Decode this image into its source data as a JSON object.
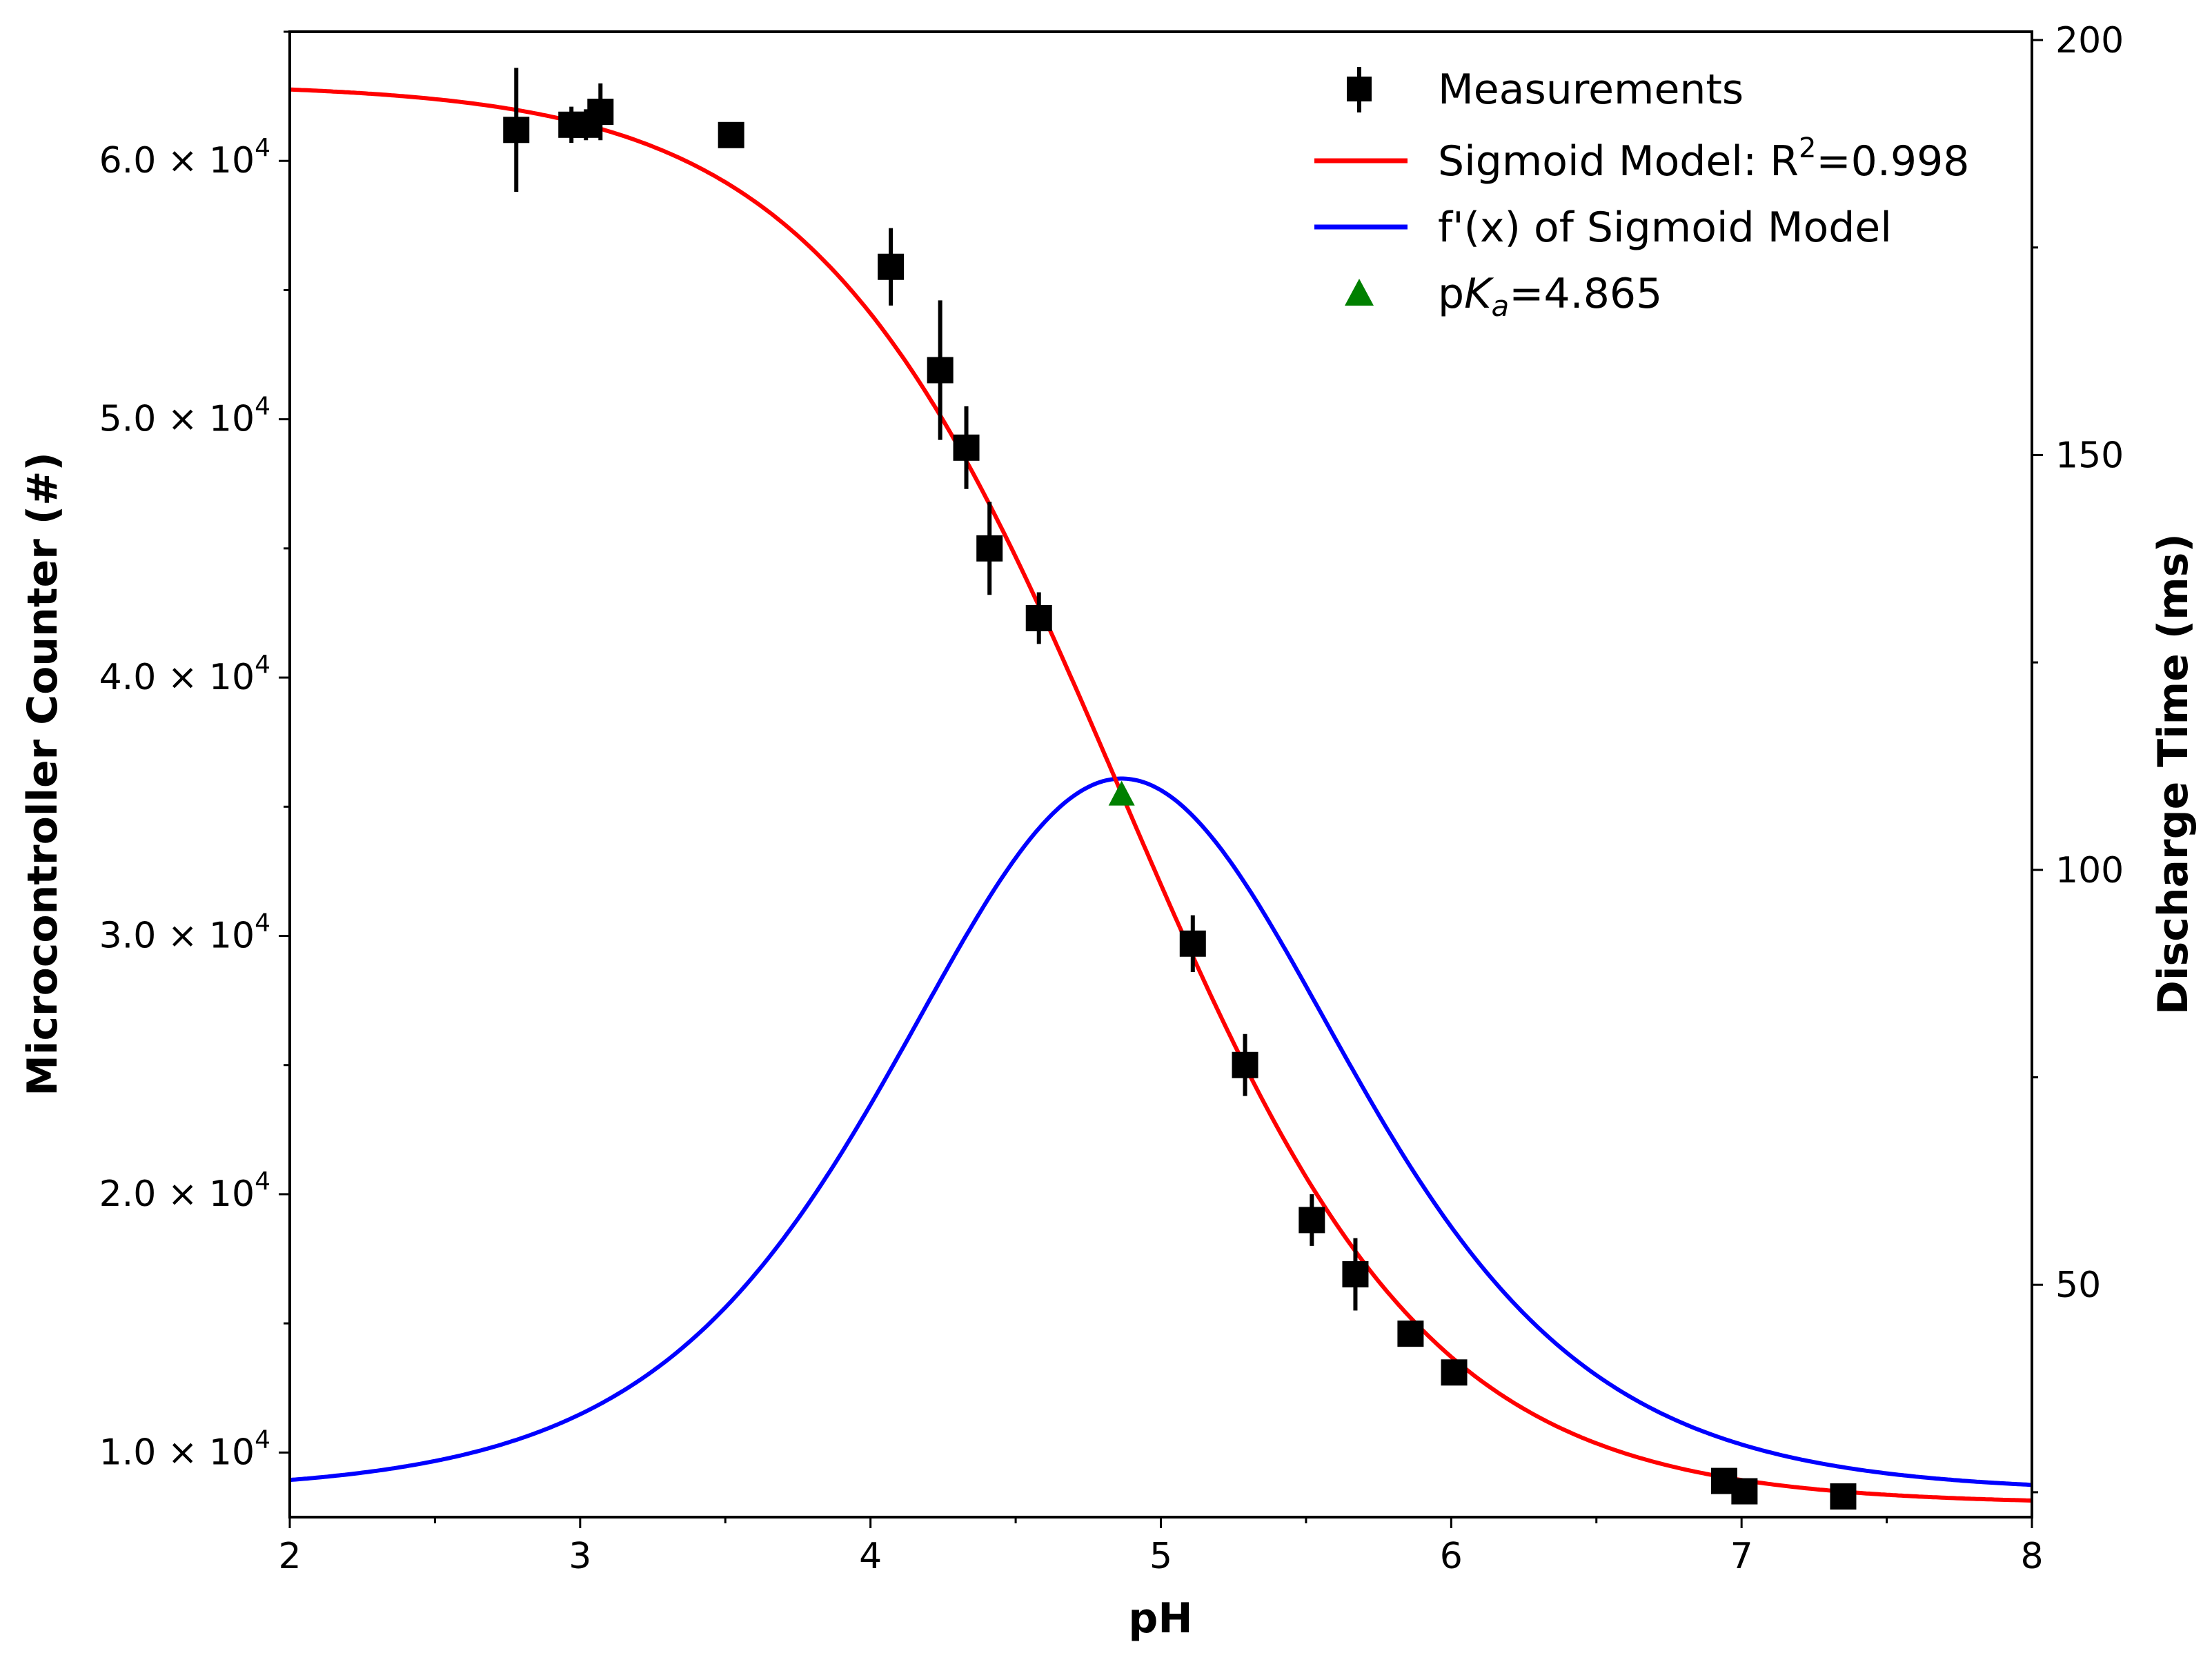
{
  "chart_data": {
    "type": "scatter",
    "xlabel": "pH",
    "ylabel_left": "Microcontroller Counter (#)",
    "ylabel_right": "Discharge Time (ms)",
    "xlim": [
      2,
      8
    ],
    "ylim_left": [
      7500,
      65000
    ],
    "ylim_right": [
      22,
      201
    ],
    "x_ticks": [
      "2",
      "3",
      "4",
      "5",
      "6",
      "7",
      "8"
    ],
    "y_left_ticks": [
      {
        "value": 10000,
        "mantissa": "1.0",
        "exp": "4"
      },
      {
        "value": 20000,
        "mantissa": "2.0",
        "exp": "4"
      },
      {
        "value": 30000,
        "mantissa": "3.0",
        "exp": "4"
      },
      {
        "value": 40000,
        "mantissa": "4.0",
        "exp": "4"
      },
      {
        "value": 50000,
        "mantissa": "5.0",
        "exp": "4"
      },
      {
        "value": 60000,
        "mantissa": "6.0",
        "exp": "4"
      }
    ],
    "y_right_ticks": [
      "50",
      "100",
      "150",
      "200"
    ],
    "times_sign": "×",
    "tick_base": "10",
    "measurements": {
      "name": "Measurements",
      "color": "#000000",
      "points": [
        {
          "x": 2.78,
          "y": 61200,
          "err": 2400
        },
        {
          "x": 2.97,
          "y": 61400,
          "err": 700
        },
        {
          "x": 3.02,
          "y": 61400,
          "err": 600
        },
        {
          "x": 3.07,
          "y": 61900,
          "err": 1100
        },
        {
          "x": 3.52,
          "y": 61000,
          "err": 300
        },
        {
          "x": 4.07,
          "y": 55900,
          "err": 1500
        },
        {
          "x": 4.24,
          "y": 51900,
          "err": 2700
        },
        {
          "x": 4.33,
          "y": 48900,
          "err": 1600
        },
        {
          "x": 4.41,
          "y": 45000,
          "err": 1800
        },
        {
          "x": 4.58,
          "y": 42300,
          "err": 1000
        },
        {
          "x": 5.11,
          "y": 29700,
          "err": 1100
        },
        {
          "x": 5.29,
          "y": 25000,
          "err": 1200
        },
        {
          "x": 5.52,
          "y": 19000,
          "err": 1000
        },
        {
          "x": 5.67,
          "y": 16900,
          "err": 1400
        },
        {
          "x": 5.86,
          "y": 14600,
          "err": 300
        },
        {
          "x": 6.01,
          "y": 13100,
          "err": 200
        },
        {
          "x": 6.94,
          "y": 8900,
          "err": 300
        },
        {
          "x": 7.01,
          "y": 8500,
          "err": 200
        },
        {
          "x": 7.35,
          "y": 8300,
          "err": 200
        }
      ]
    },
    "sigmoid": {
      "name_prefix": "Sigmoid Model: R",
      "name_sup": "2",
      "name_suffix": "=0.998",
      "color": "#ff0000",
      "bottom": 8000,
      "top": 63000,
      "x0": 4.865,
      "k": 1.9
    },
    "derivative": {
      "name": "f'(x) of Sigmoid Model",
      "color": "#0000ff",
      "baseline_ms": 25,
      "peak_ms": 111
    },
    "pka": {
      "label_prefix": "p",
      "label_k": "K",
      "label_sub": "a",
      "label_suffix": "=4.865",
      "x": 4.865,
      "y": 35500,
      "color": "#008000"
    },
    "legend_position": "top-right"
  }
}
